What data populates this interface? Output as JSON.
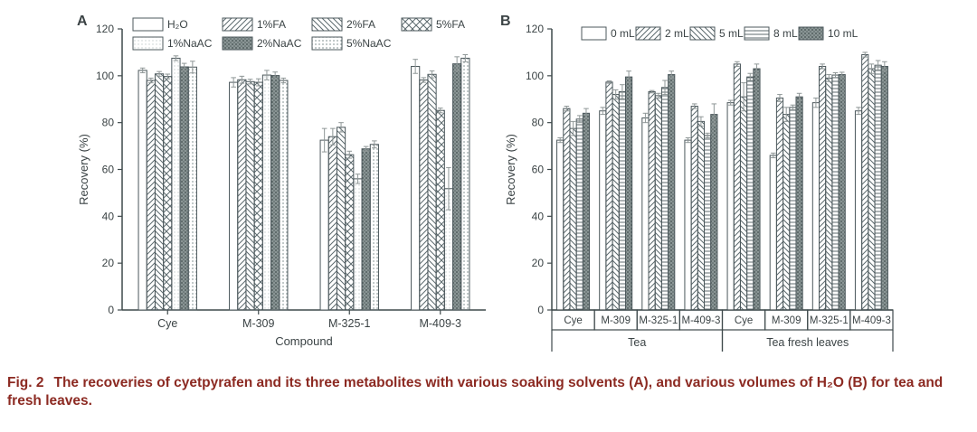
{
  "caption": {
    "label": "Fig. 2",
    "text": "The recoveries of cyetpyrafen and its three metabolites with various soaking solvents (A), and various volumes of H₂O (B) for tea and fresh leaves."
  },
  "colors": {
    "background": "#ffffff",
    "axis": "#3f4a4c",
    "text": "#3b4345",
    "bar_edge": "#4c585c",
    "hatch": "#5c6a6e",
    "dark_fill": "#8a9595",
    "dark_dot": "#525e5e",
    "light_dot": "#c3cdcd",
    "medium_dot": "#97a3a3",
    "error_bar": "#8f9797",
    "caption": "#8c2a22"
  },
  "chart_data": [
    {
      "type": "bar",
      "panel": "A",
      "title": "",
      "xlabel": "Compound",
      "ylabel": "Recovery (%)",
      "ylim": [
        0,
        120
      ],
      "yticks": [
        0,
        20,
        40,
        60,
        80,
        100,
        120
      ],
      "grid": false,
      "legend_position": "top",
      "x_axis_style": "ticks",
      "categories": [
        "Cye",
        "M-309",
        "M-325-1",
        "M-409-3"
      ],
      "series": [
        {
          "name": "H₂O",
          "pattern": "blank",
          "values": [
            102.3,
            97.2,
            72.5,
            104.0
          ],
          "errors": [
            1.0,
            2.0,
            5.0,
            3.0
          ]
        },
        {
          "name": "1%FA",
          "pattern": "diag-up",
          "values": [
            98.0,
            98.3,
            74.0,
            98.2
          ],
          "errors": [
            1.0,
            1.5,
            3.5,
            1.0
          ]
        },
        {
          "name": "2%FA",
          "pattern": "diag-down",
          "values": [
            100.8,
            97.5,
            78.0,
            100.6
          ],
          "errors": [
            1.0,
            1.0,
            2.0,
            1.5
          ]
        },
        {
          "name": "5%FA",
          "pattern": "crosshatch",
          "values": [
            99.7,
            97.2,
            66.3,
            85.2
          ],
          "errors": [
            1.0,
            1.5,
            1.5,
            1.0
          ]
        },
        {
          "name": "1%NaAC",
          "pattern": "dots-light",
          "values": [
            107.5,
            100.3,
            56.0,
            51.8
          ],
          "errors": [
            1.0,
            2.0,
            2.0,
            9.0
          ]
        },
        {
          "name": "2%NaAC",
          "pattern": "dark-dotted",
          "values": [
            103.8,
            100.1,
            68.8,
            105.1
          ],
          "errors": [
            1.5,
            1.5,
            1.0,
            3.0
          ]
        },
        {
          "name": "5%NaAC",
          "pattern": "dots-medium",
          "values": [
            103.7,
            98.0,
            70.7,
            107.5
          ],
          "errors": [
            2.5,
            1.0,
            1.5,
            1.5
          ]
        }
      ]
    },
    {
      "type": "bar",
      "panel": "B",
      "title": "",
      "xlabel": "",
      "ylabel": "Recovery (%)",
      "ylim": [
        0,
        120
      ],
      "yticks": [
        0,
        20,
        40,
        60,
        80,
        100,
        120
      ],
      "grid": false,
      "legend_position": "top",
      "x_axis_style": "boxes",
      "categories": [
        "Cye",
        "M-309",
        "M-325-1",
        "M-409-3",
        "Cye",
        "M-309",
        "M-325-1",
        "M-409-3"
      ],
      "group_spans": [
        {
          "label": "Tea",
          "from": 0,
          "to": 3
        },
        {
          "label": "Tea fresh leaves",
          "from": 4,
          "to": 7
        }
      ],
      "series": [
        {
          "name": "0 mL",
          "pattern": "blank",
          "values": [
            72.5,
            85.0,
            82.0,
            72.5,
            88.5,
            66.0,
            88.5,
            85.0
          ],
          "errors": [
            1.0,
            1.5,
            2.0,
            1.0,
            1.0,
            1.0,
            2.0,
            1.5
          ]
        },
        {
          "name": "2 mL",
          "pattern": "diag-up",
          "values": [
            86.0,
            97.3,
            93.2,
            87.0,
            105.0,
            90.5,
            104.0,
            109.0
          ],
          "errors": [
            1.0,
            0.5,
            0.5,
            1.0,
            1.0,
            1.5,
            1.0,
            1.0
          ]
        },
        {
          "name": "5 mL",
          "pattern": "diag-down",
          "values": [
            77.5,
            92.0,
            91.5,
            80.5,
            91.0,
            83.5,
            99.0,
            103.0
          ],
          "errors": [
            3.0,
            2.0,
            1.0,
            2.0,
            6.0,
            3.0,
            1.5,
            2.0
          ]
        },
        {
          "name": "8 mL",
          "pattern": "hlines",
          "values": [
            81.5,
            93.2,
            95.0,
            74.5,
            99.5,
            86.5,
            100.3,
            104.5
          ],
          "errors": [
            1.5,
            3.0,
            3.0,
            1.0,
            1.5,
            1.0,
            1.0,
            2.0
          ]
        },
        {
          "name": "10 mL",
          "pattern": "dark-dotted",
          "values": [
            84.0,
            99.5,
            100.5,
            83.5,
            103.0,
            91.0,
            100.5,
            104.0
          ],
          "errors": [
            2.0,
            2.5,
            1.5,
            4.5,
            2.0,
            1.5,
            1.0,
            2.0
          ]
        }
      ]
    }
  ]
}
